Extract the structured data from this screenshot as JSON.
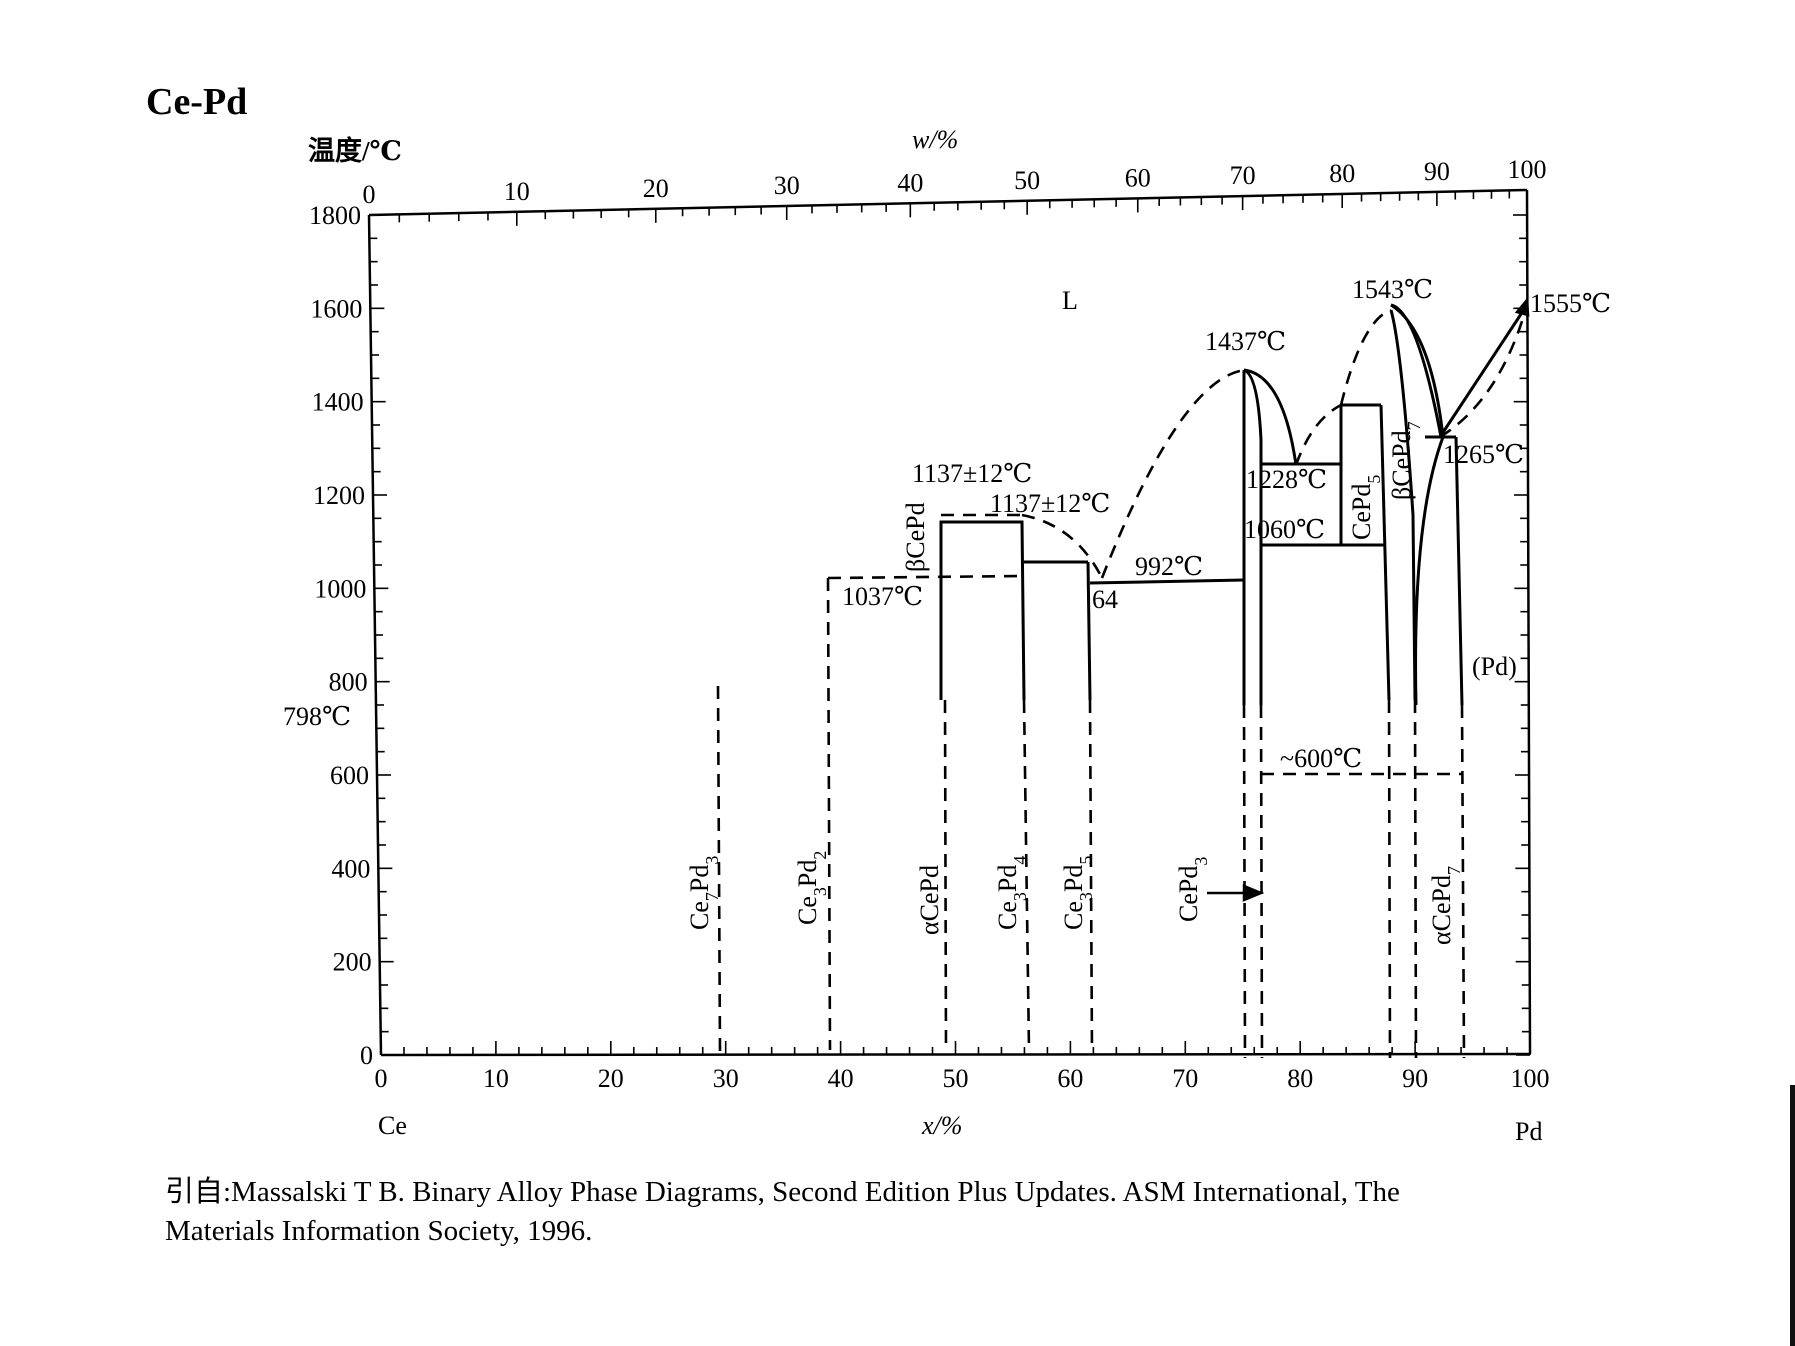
{
  "title": "Ce-Pd",
  "axes": {
    "y_label": "温度/℃",
    "top_label": "w/%",
    "bottom_label": "x/%",
    "left_element": "Ce",
    "right_element": "Pd",
    "y_ticks": [
      "0",
      "200",
      "400",
      "600",
      "800",
      "1000",
      "1200",
      "1400",
      "1600",
      "1800"
    ],
    "x_ticks": [
      "0",
      "10",
      "20",
      "30",
      "40",
      "50",
      "60",
      "70",
      "80",
      "90",
      "100"
    ],
    "top_ticks": [
      {
        "w": 0,
        "label": "0"
      },
      {
        "w": 10,
        "label": "10"
      },
      {
        "w": 20,
        "label": "20"
      },
      {
        "w": 30,
        "label": "30"
      },
      {
        "w": 40,
        "label": "40"
      },
      {
        "w": 50,
        "label": "50"
      },
      {
        "w": 60,
        "label": "60"
      },
      {
        "w": 70,
        "label": "70"
      },
      {
        "w": 80,
        "label": "80"
      },
      {
        "w": 90,
        "label": "90"
      },
      {
        "w": 100,
        "label": "100"
      }
    ]
  },
  "labels": {
    "liquid": "L",
    "pd_solid": "(Pd)",
    "t798": "798℃",
    "t1037": "1037℃",
    "t1137a": "1137±12℃",
    "t1137b": "1137±12℃",
    "e64": "64",
    "t992": "992℃",
    "t1437": "1437℃",
    "t1228": "1228℃",
    "t1060": "1060℃",
    "t1543": "1543℃",
    "t1555": "1555℃",
    "t1265": "1265℃",
    "t600": "~600℃"
  },
  "phases": [
    {
      "id": "ce7pd3",
      "main": "Ce",
      "sub1": "7",
      "mid": "Pd",
      "sub2": "3"
    },
    {
      "id": "ce3pd2",
      "main": "Ce",
      "sub1": "3",
      "mid": "Pd",
      "sub2": "2"
    },
    {
      "id": "acepd",
      "main": "αCePd"
    },
    {
      "id": "ce3pd4",
      "main": "Ce",
      "sub1": "3",
      "mid": "Pd",
      "sub2": "4"
    },
    {
      "id": "ce3pd5",
      "main": "Ce",
      "sub1": "3",
      "mid": "Pd",
      "sub2": "5"
    },
    {
      "id": "cepd3",
      "main": "CePd",
      "sub1": "3"
    },
    {
      "id": "acepd7",
      "main": "αCePd",
      "sub1": "7"
    },
    {
      "id": "bcepd",
      "main": "βCePd"
    },
    {
      "id": "cepd5",
      "main": "CePd",
      "sub1": "5"
    },
    {
      "id": "bcepd7",
      "main": "βCePd",
      "sub1": "7"
    }
  ],
  "caption": {
    "line1": "引自:Massalski T B.  Binary Alloy Phase Diagrams, Second Edition Plus Updates.  ASM International, The",
    "line2": "Materials Information Society, 1996."
  }
}
